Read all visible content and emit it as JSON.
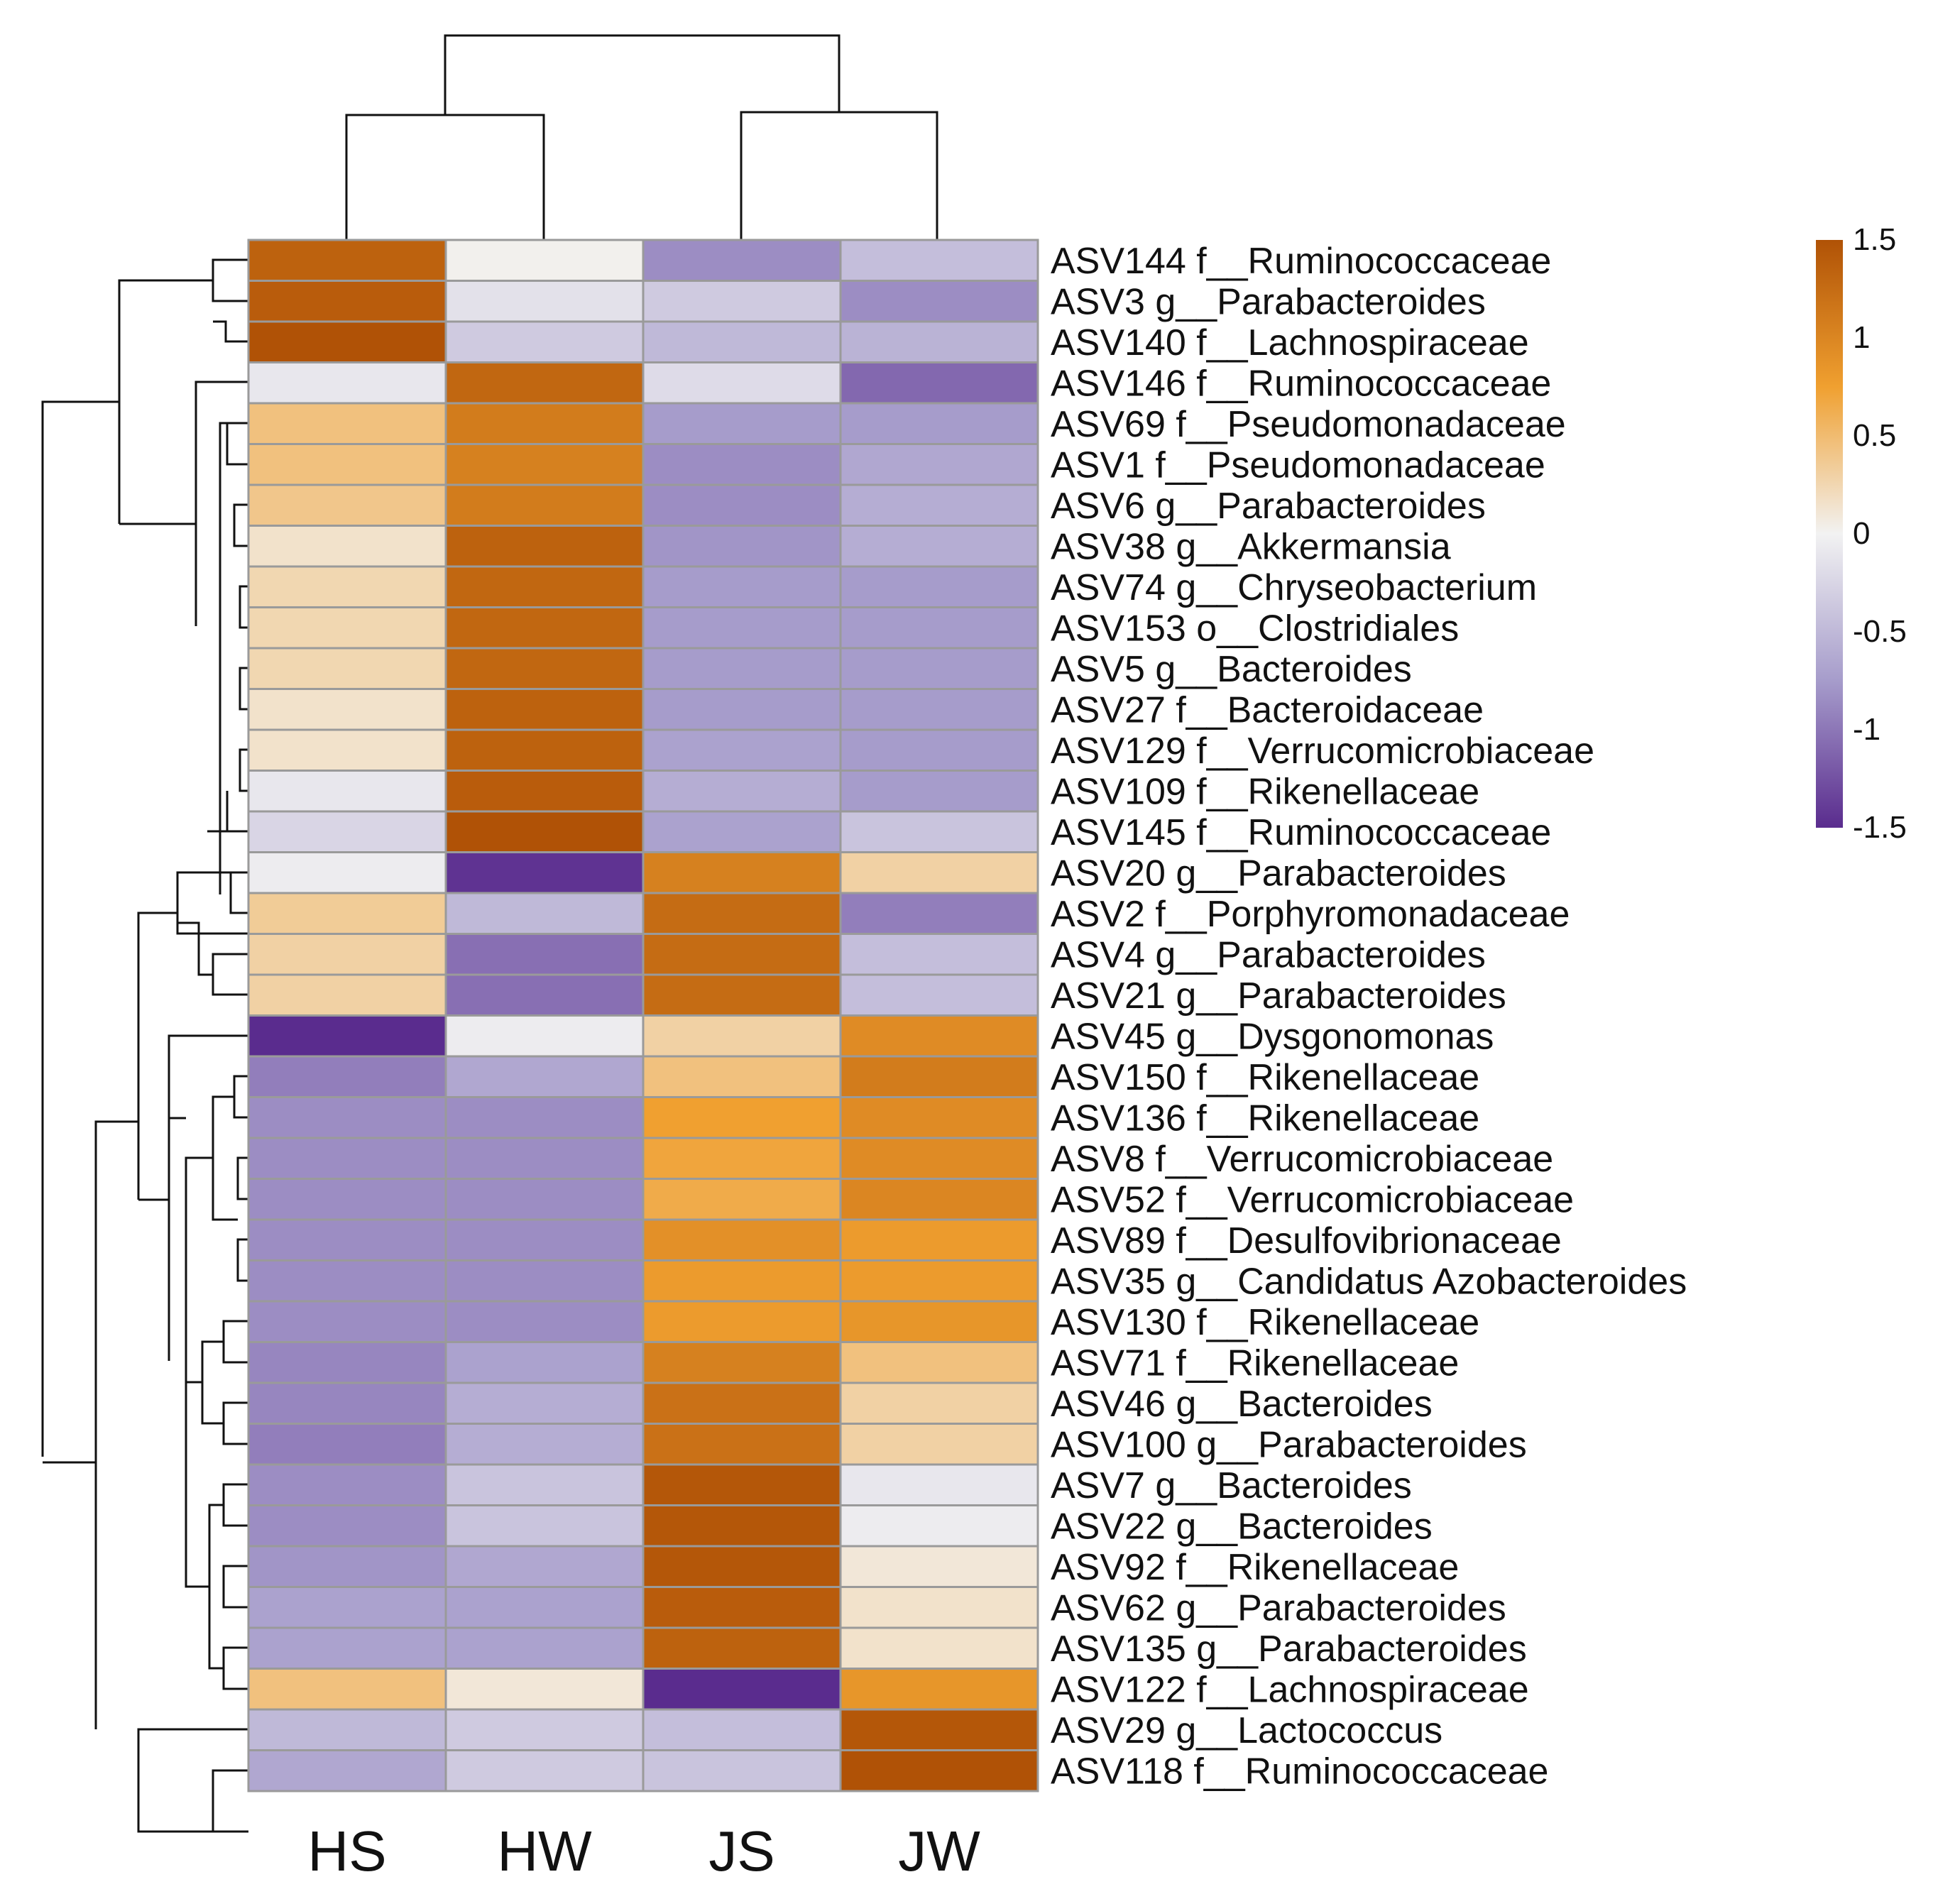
{
  "chart_data": {
    "type": "heatmap",
    "title": "",
    "columns": [
      "HS",
      "HW",
      "JS",
      "JW"
    ],
    "rows": [
      "ASV144 f__Ruminococcaceae",
      "ASV3  g__Parabacteroides",
      "ASV140 f__Lachnospiraceae",
      "ASV146 f__Ruminococcaceae",
      "ASV69 f__Pseudomonadaceae",
      "ASV1  f__Pseudomonadaceae",
      "ASV6 g__Parabacteroides",
      "ASV38 g__Akkermansia",
      "ASV74 g__Chryseobacterium",
      "ASV153 o__Clostridiales",
      "ASV5 g__Bacteroides",
      "ASV27 f__Bacteroidaceae",
      "ASV129 f__Verrucomicrobiaceae",
      "ASV109 f__Rikenellaceae",
      "ASV145 f__Ruminococcaceae",
      "ASV20 g__Parabacteroides",
      "ASV2  f__Porphyromonadaceae",
      "ASV4  g__Parabacteroides",
      "ASV21 g__Parabacteroides",
      "ASV45 g__Dysgonomonas",
      "ASV150 f__Rikenellaceae",
      "ASV136 f__Rikenellaceae",
      "ASV8 f__Verrucomicrobiaceae",
      "ASV52 f__Verrucomicrobiaceae",
      "ASV89 f__Desulfovibrionaceae",
      "ASV35 g__Candidatus Azobacteroides",
      "ASV130 f__Rikenellaceae",
      "ASV71 f__Rikenellaceae",
      "ASV46 g__Bacteroides",
      "ASV100 g__Parabacteroides",
      "ASV7 g__Bacteroides",
      "ASV22 g__Bacteroides",
      "ASV92 f__Rikenellaceae",
      "ASV62 g__Parabacteroides",
      "ASV135 g__Parabacteroides",
      "ASV122 f__Lachnospiraceae",
      "ASV29 g__Lactococcus",
      "ASV118 f__Ruminococcaceae"
    ],
    "values": [
      [
        1.35,
        0.02,
        -0.85,
        -0.45
      ],
      [
        1.4,
        -0.15,
        -0.35,
        -0.85
      ],
      [
        1.5,
        -0.35,
        -0.5,
        -0.55
      ],
      [
        -0.1,
        1.3,
        -0.2,
        -1.1
      ],
      [
        0.45,
        1.1,
        -0.75,
        -0.75
      ],
      [
        0.45,
        1.05,
        -0.85,
        -0.65
      ],
      [
        0.4,
        1.1,
        -0.85,
        -0.6
      ],
      [
        0.15,
        1.35,
        -0.8,
        -0.6
      ],
      [
        0.25,
        1.3,
        -0.75,
        -0.75
      ],
      [
        0.25,
        1.3,
        -0.75,
        -0.75
      ],
      [
        0.25,
        1.3,
        -0.75,
        -0.75
      ],
      [
        0.15,
        1.35,
        -0.75,
        -0.75
      ],
      [
        0.15,
        1.35,
        -0.7,
        -0.75
      ],
      [
        -0.1,
        1.4,
        -0.6,
        -0.75
      ],
      [
        -0.25,
        1.5,
        -0.7,
        -0.4
      ],
      [
        -0.05,
        -1.45,
        1.05,
        0.3
      ],
      [
        0.35,
        -0.5,
        1.25,
        -0.95
      ],
      [
        0.3,
        -1.05,
        1.25,
        -0.45
      ],
      [
        0.3,
        -1.05,
        1.25,
        -0.45
      ],
      [
        -1.5,
        -0.05,
        0.3,
        0.95
      ],
      [
        -0.95,
        -0.65,
        0.45,
        1.1
      ],
      [
        -0.85,
        -0.85,
        0.75,
        0.95
      ],
      [
        -0.85,
        -0.85,
        0.7,
        0.95
      ],
      [
        -0.85,
        -0.85,
        0.65,
        1.0
      ],
      [
        -0.85,
        -0.85,
        0.9,
        0.8
      ],
      [
        -0.85,
        -0.85,
        0.8,
        0.8
      ],
      [
        -0.85,
        -0.85,
        0.8,
        0.85
      ],
      [
        -0.9,
        -0.7,
        1.05,
        0.45
      ],
      [
        -0.9,
        -0.6,
        1.2,
        0.3
      ],
      [
        -0.95,
        -0.6,
        1.2,
        0.3
      ],
      [
        -0.85,
        -0.4,
        1.45,
        -0.1
      ],
      [
        -0.85,
        -0.4,
        1.45,
        -0.05
      ],
      [
        -0.8,
        -0.65,
        1.45,
        0.1
      ],
      [
        -0.7,
        -0.7,
        1.4,
        0.15
      ],
      [
        -0.7,
        -0.7,
        1.35,
        0.15
      ],
      [
        0.45,
        0.1,
        -1.5,
        0.85
      ],
      [
        -0.5,
        -0.35,
        -0.45,
        1.45
      ],
      [
        -0.65,
        -0.35,
        -0.4,
        1.5
      ]
    ],
    "colorbar": {
      "range": [
        -1.5,
        1.5
      ],
      "ticks": [
        "1.5",
        "1",
        "0.5",
        "0",
        "-0.5",
        "-1",
        "-1.5"
      ],
      "colors": {
        "low": "#5a2c8e",
        "mid_low": "#a69ccb",
        "mid": "#f2f2f2",
        "mid_high": "#f0a030",
        "high": "#b05206"
      }
    },
    "column_dendrogram": "((HS,HW),(JS,JW))",
    "row_dendrogram": "clustered",
    "legend_position": "right"
  }
}
